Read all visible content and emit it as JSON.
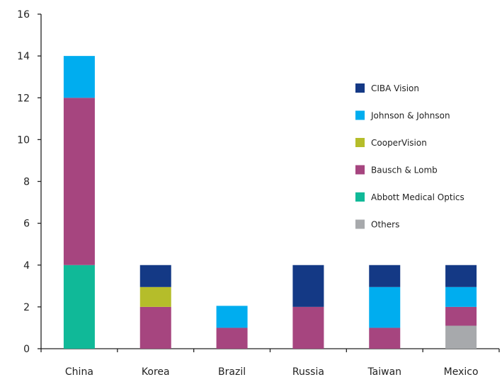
{
  "chart_data": {
    "type": "bar",
    "stacked": true,
    "categories": [
      "China",
      "Korea",
      "Brazil",
      "Russia",
      "Taiwan",
      "Mexico"
    ],
    "series": [
      {
        "name": "Others",
        "color": "#a7a9ac",
        "values": [
          0,
          0,
          0,
          0,
          0,
          1.1
        ]
      },
      {
        "name": "Abbott Medical Optics",
        "color": "#10b998",
        "values": [
          4,
          0,
          0,
          0,
          0,
          0
        ]
      },
      {
        "name": "Bausch & Lomb",
        "color": "#a6457f",
        "values": [
          8,
          2,
          1,
          2,
          1,
          0.9
        ]
      },
      {
        "name": "CooperVision",
        "color": "#b5bd2a",
        "values": [
          0,
          0.95,
          0,
          0,
          0,
          0
        ]
      },
      {
        "name": "Johnson & Johnson",
        "color": "#00adef",
        "values": [
          2,
          0,
          1.05,
          0,
          1.95,
          0.95
        ]
      },
      {
        "name": "CIBA Vision",
        "color": "#143985",
        "values": [
          0,
          1.05,
          0,
          2,
          1.05,
          1.05
        ]
      }
    ],
    "legend_order": [
      "CIBA Vision",
      "Johnson & Johnson",
      "CooperVision",
      "Bausch & Lomb",
      "Abbott Medical Optics",
      "Others"
    ],
    "legend_position": "right",
    "yticks": [
      0,
      2,
      4,
      6,
      8,
      10,
      12,
      14,
      16
    ],
    "ylim": [
      0,
      16
    ],
    "grid": false,
    "title": "",
    "xlabel": "",
    "ylabel": ""
  }
}
